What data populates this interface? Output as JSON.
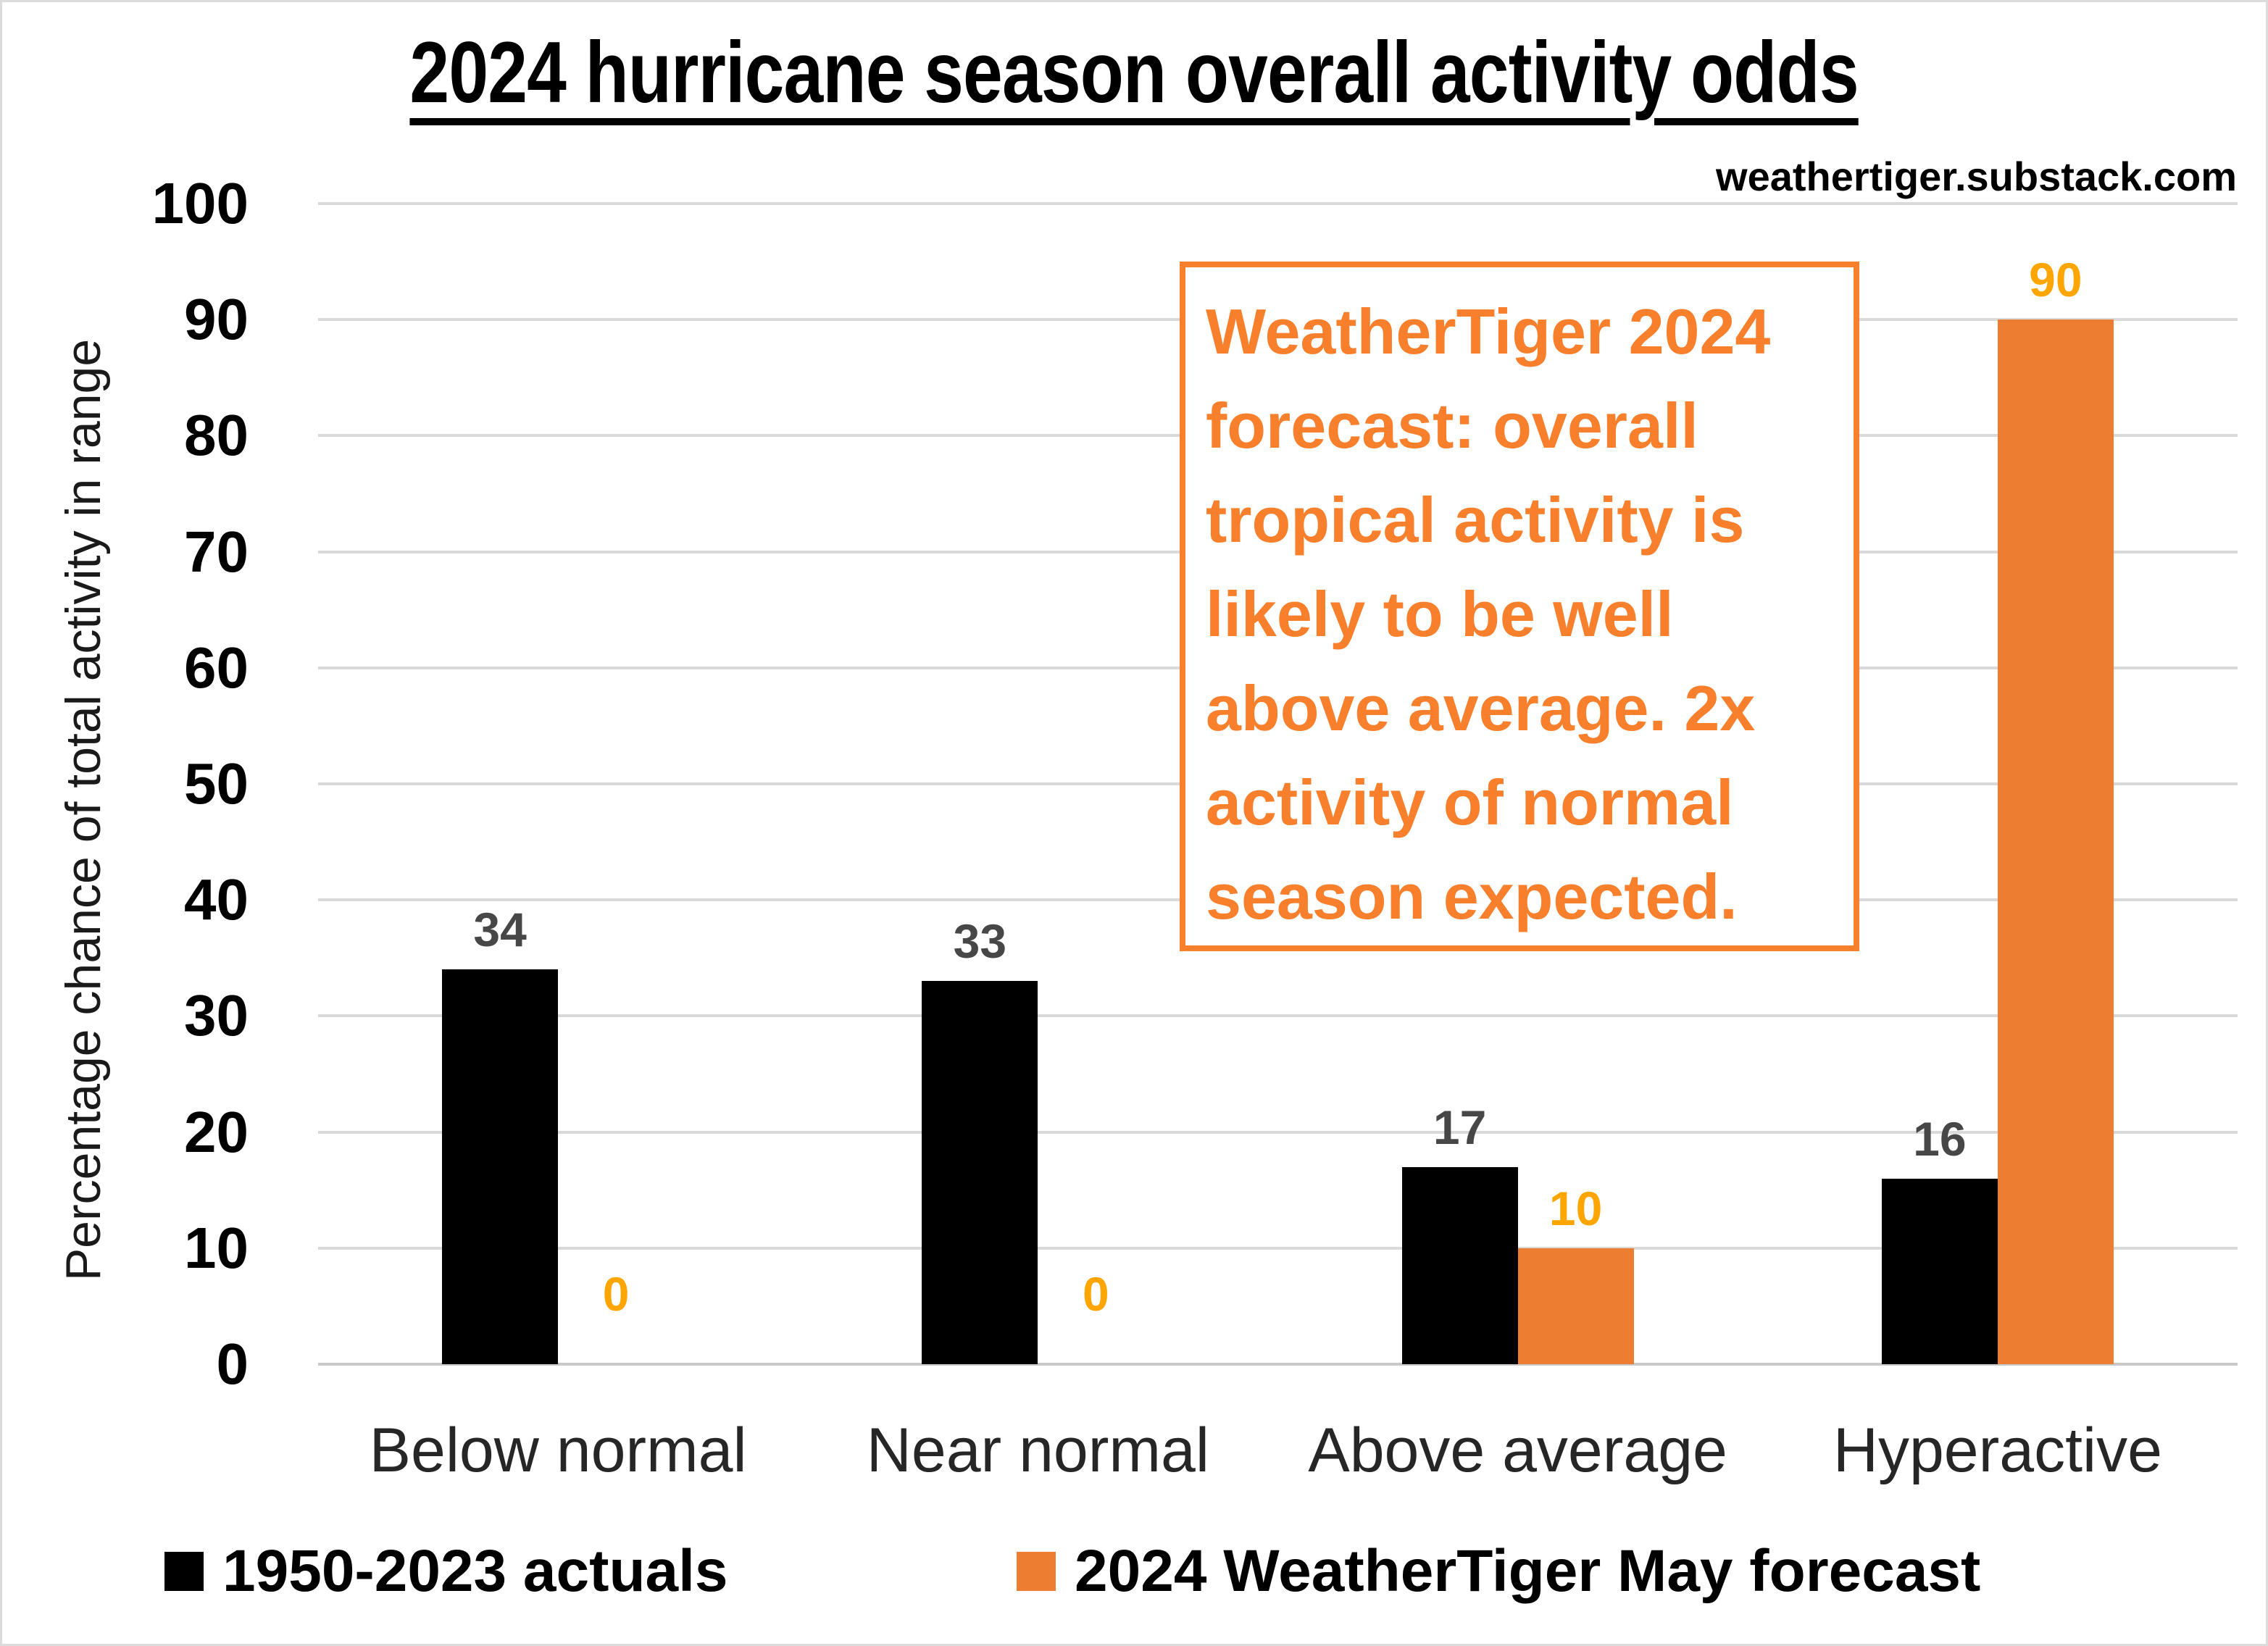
{
  "page": {
    "watermark": "weathertiger.substack.com"
  },
  "chart_data": {
    "type": "bar",
    "title": "2024 hurricane season overall activity odds",
    "ylabel": "Percentage chance of total activity in range",
    "xlabel": "",
    "categories": [
      "Below normal",
      "Near normal",
      "Above average",
      "Hyperactive"
    ],
    "series": [
      {
        "name": "1950-2023 actuals",
        "color": "#000000",
        "label_color": "#474747",
        "values": [
          34,
          33,
          17,
          16
        ]
      },
      {
        "name": "2024 WeatherTiger May forecast",
        "color": "#ED7D31",
        "label_color": "#FFA500",
        "values": [
          0,
          0,
          10,
          90
        ]
      }
    ],
    "ylim": [
      0,
      100
    ],
    "ytick_step": 10,
    "grid": true,
    "legend_position": "bottom"
  },
  "annotation": {
    "color": "#F8802D",
    "lines": [
      "WeatherTiger 2024",
      "forecast: overall",
      "tropical activity is",
      "likely to be well",
      "above average. 2x",
      "activity of normal",
      "season expected."
    ],
    "text": "WeatherTiger 2024 forecast: overall tropical activity is likely to be well above average. 2x activity of normal season expected."
  }
}
